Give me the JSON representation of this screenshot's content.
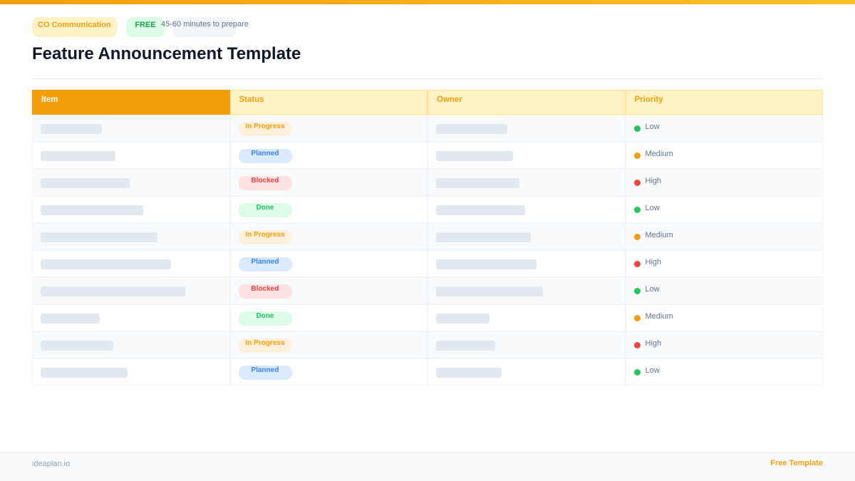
{
  "header": {
    "badges": [
      "CO  Communication",
      "FREE",
      "45-60 minutes to prepare"
    ],
    "title": "Feature Announcement Template"
  },
  "table": {
    "columns": [
      "Item",
      "Status",
      "Owner",
      "Priority"
    ],
    "rows": [
      {
        "status": "In Progress",
        "priority": "Low"
      },
      {
        "status": "Planned",
        "priority": "Medium"
      },
      {
        "status": "Blocked",
        "priority": "High"
      },
      {
        "status": "Done",
        "priority": "Low"
      },
      {
        "status": "In Progress",
        "priority": "Medium"
      },
      {
        "status": "Planned",
        "priority": "High"
      },
      {
        "status": "Blocked",
        "priority": "Low"
      },
      {
        "status": "Done",
        "priority": "Medium"
      },
      {
        "status": "In Progress",
        "priority": "High"
      },
      {
        "status": "Planned",
        "priority": "Low"
      }
    ]
  },
  "footer": {
    "site": "ideaplan.io",
    "tag": "Free Template"
  }
}
